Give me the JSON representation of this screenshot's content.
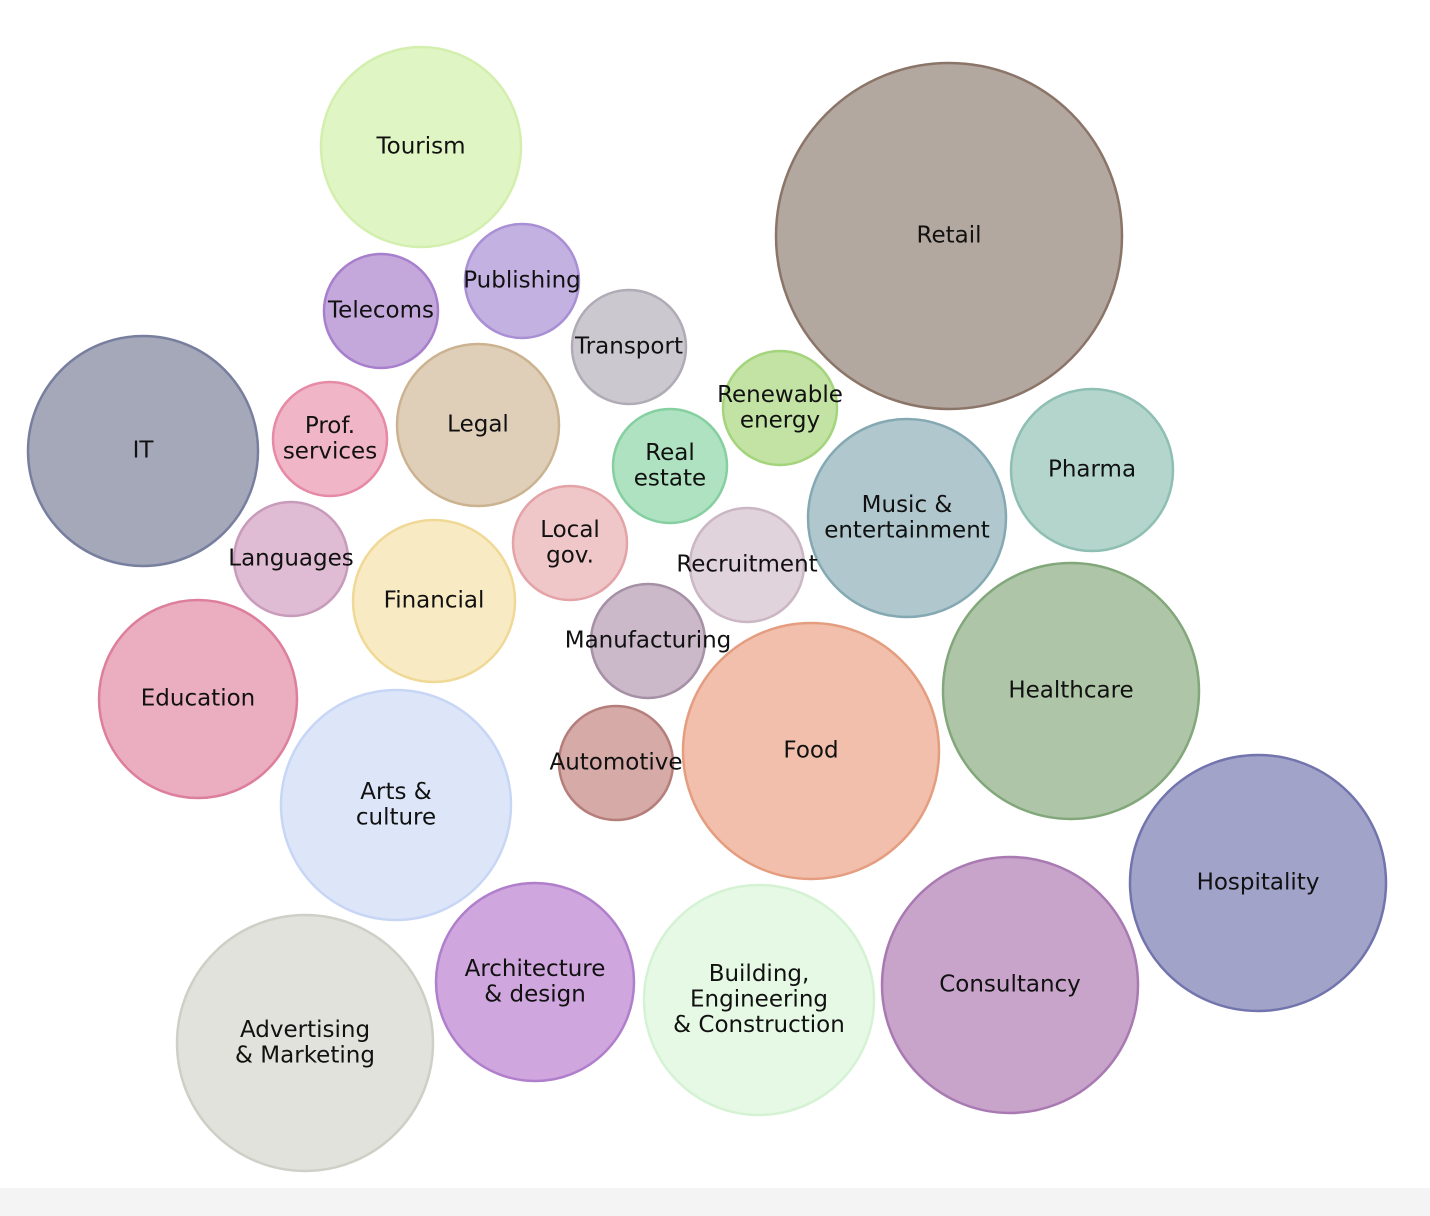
{
  "nodes": [
    {
      "label": [
        "Tourism"
      ],
      "color": "#e0f5c4",
      "stroke": "#d3efae"
    },
    {
      "label": [
        "Publishing"
      ],
      "color": "#c3b1e1",
      "stroke": "#a98fd4"
    },
    {
      "label": [
        "Telecoms"
      ],
      "color": "#c4a8dc",
      "stroke": "#a77fcc"
    },
    {
      "label": [
        "Retail"
      ],
      "color": "#b3a89f",
      "stroke": "#8b7468"
    },
    {
      "label": [
        "Transport"
      ],
      "color": "#cbc8d0",
      "stroke": "#b0acb6"
    },
    {
      "label": [
        "IT"
      ],
      "color": "#a4a8b9",
      "stroke": "#787f9e"
    },
    {
      "label": [
        "Prof.",
        "services"
      ],
      "color": "#f1b5c8",
      "stroke": "#e68aa6"
    },
    {
      "label": [
        "Legal"
      ],
      "color": "#e0cfb8",
      "stroke": "#cbb391"
    },
    {
      "label": [
        "Renewable",
        "energy"
      ],
      "color": "#c2e3a3",
      "stroke": "#a4d47c"
    },
    {
      "label": [
        "Real",
        "estate"
      ],
      "color": "#aee2c1",
      "stroke": "#85cfa0"
    },
    {
      "label": [
        "Pharma"
      ],
      "color": "#b3d5cc",
      "stroke": "#8ebfb2"
    },
    {
      "label": [
        "Music &",
        "entertainment"
      ],
      "color": "#afc7cd",
      "stroke": "#85a9b3"
    },
    {
      "label": [
        "Languages"
      ],
      "color": "#dfbcd4",
      "stroke": "#c99bbb"
    },
    {
      "label": [
        "Local",
        "gov."
      ],
      "color": "#f0c7c9",
      "stroke": "#e4a3a7"
    },
    {
      "label": [
        "Recruitment"
      ],
      "color": "#e1d3dc",
      "stroke": "#cbb6c4"
    },
    {
      "label": [
        "Financial"
      ],
      "color": "#f8eac2",
      "stroke": "#f0d996"
    },
    {
      "label": [
        "Education"
      ],
      "color": "#ebaec0",
      "stroke": "#dd7e9c"
    },
    {
      "label": [
        "Manufacturing"
      ],
      "color": "#cbb9ca",
      "stroke": "#a690a6"
    },
    {
      "label": [
        "Healthcare"
      ],
      "color": "#aec6a7",
      "stroke": "#82a77a"
    },
    {
      "label": [
        "Food"
      ],
      "color": "#f1bfab",
      "stroke": "#e59d80"
    },
    {
      "label": [
        "Arts &",
        "culture"
      ],
      "color": "#dde6f9",
      "stroke": "#c8d6f5"
    },
    {
      "label": [
        "Automotive"
      ],
      "color": "#d5aaa7",
      "stroke": "#b57e7a"
    },
    {
      "label": [
        "Hospitality"
      ],
      "color": "#a2a3c9",
      "stroke": "#7274ad"
    },
    {
      "label": [
        "Architecture",
        "& design"
      ],
      "color": "#cfa6dd",
      "stroke": "#b07fcc"
    },
    {
      "label": [
        "Building,",
        "Engineering",
        "& Construction"
      ],
      "color": "#e5f9e4",
      "stroke": "#d6f2d4"
    },
    {
      "label": [
        "Consultancy"
      ],
      "color": "#c8a4cb",
      "stroke": "#a979b2"
    },
    {
      "label": [
        "Advertising",
        "& Marketing"
      ],
      "color": "#e0e2db",
      "stroke": "#cdd0c6"
    }
  ]
}
